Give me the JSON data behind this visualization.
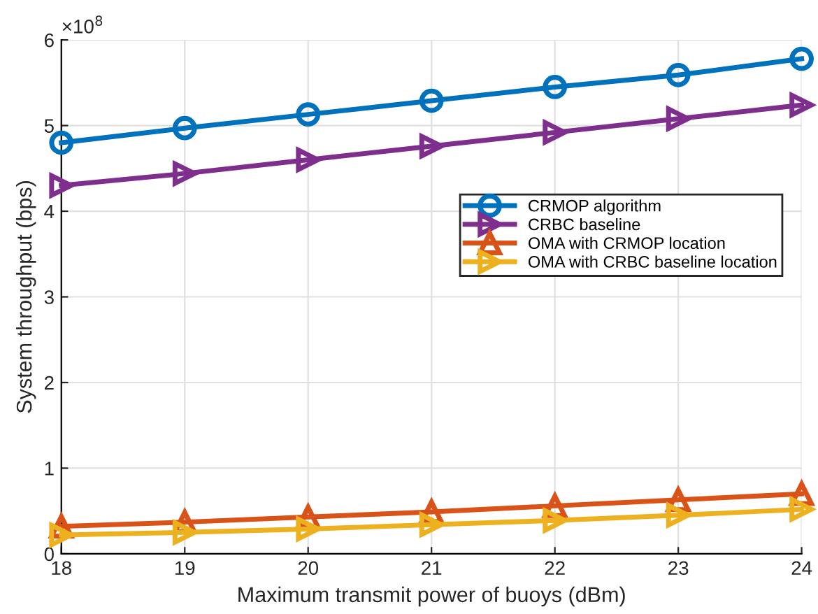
{
  "chart_data": {
    "type": "line",
    "xlabel": "Maximum transmit power of buoys (dBm)",
    "ylabel": "System throughput (bps)",
    "x": [
      18,
      19,
      20,
      21,
      22,
      23,
      24
    ],
    "series": [
      {
        "name": "CRMOP algorithm",
        "color": "#0072bd",
        "marker": "circle",
        "values": [
          4.8,
          4.97,
          5.13,
          5.29,
          5.45,
          5.59,
          5.78
        ]
      },
      {
        "name": "CRBC baseline",
        "color": "#7e2f8e",
        "marker": "triangle_right",
        "values": [
          4.3,
          4.44,
          4.6,
          4.76,
          4.92,
          5.08,
          5.24
        ]
      },
      {
        "name": "OMA with CRMOP location",
        "color": "#d95319",
        "marker": "triangle",
        "values": [
          0.32,
          0.37,
          0.43,
          0.49,
          0.56,
          0.63,
          0.7
        ]
      },
      {
        "name": "OMA with CRBC baseline location",
        "color": "#edb120",
        "marker": "triangle_right",
        "values": [
          0.22,
          0.25,
          0.29,
          0.34,
          0.39,
          0.45,
          0.52
        ]
      }
    ],
    "annotations": [
      "×10$^{8}$"
    ],
    "xlim": [
      18,
      24
    ],
    "ylim": [
      0,
      6
    ],
    "xticks": [
      18,
      19,
      20,
      21,
      22,
      23,
      24
    ],
    "yticks": [
      0,
      1,
      2,
      3,
      4,
      5,
      6
    ],
    "grid": true,
    "legend": "center right",
    "line_style": "solid"
  }
}
